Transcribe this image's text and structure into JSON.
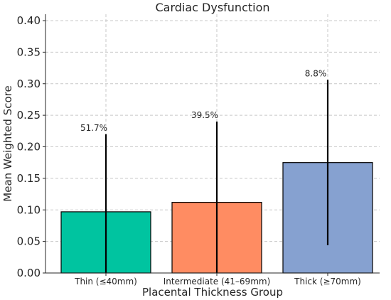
{
  "chart_data": {
    "type": "bar",
    "title": "Cardiac Dysfunction",
    "xlabel": "Placental Thickness Group",
    "ylabel": "Mean Weighted Score",
    "categories": [
      "Thin (≤40mm)",
      "Intermediate (41–69mm)",
      "Thick (≥70mm)"
    ],
    "values": [
      0.097,
      0.112,
      0.175
    ],
    "error_low": [
      0.0,
      0.0,
      0.044
    ],
    "error_high": [
      0.22,
      0.24,
      0.306
    ],
    "labels": [
      "51.7%",
      "39.5%",
      "8.8%"
    ],
    "colors": [
      "#00c4a0",
      "#ff8c62",
      "#86a1d0"
    ],
    "ylim": [
      0,
      0.4
    ],
    "yticks": [
      0.0,
      0.05,
      0.1,
      0.15,
      0.2,
      0.25,
      0.3,
      0.35,
      0.4
    ],
    "ytick_labels": [
      "0.00",
      "0.05",
      "0.10",
      "0.15",
      "0.20",
      "0.25",
      "0.30",
      "0.35",
      "0.40"
    ],
    "grid": true,
    "legend": "none"
  }
}
